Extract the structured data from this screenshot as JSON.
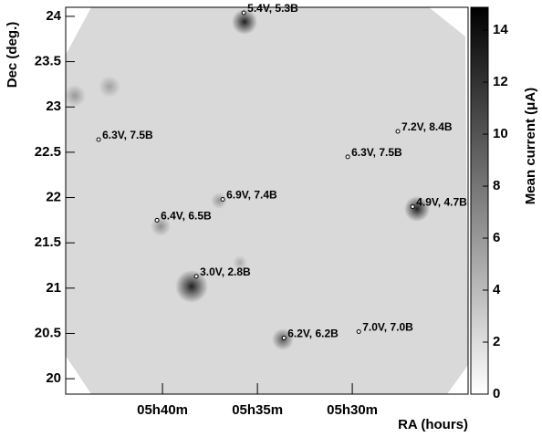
{
  "chart_data": {
    "type": "heatmap",
    "y_label": "Dec (deg.)",
    "x_label": "RA (hours)",
    "colorbar_label": "Mean current (μA)",
    "xlim": [
      5.7517,
      5.3983
    ],
    "ylim": [
      19.83,
      24.1
    ],
    "xticks": [
      {
        "value": 5.6667,
        "label": "05h40m"
      },
      {
        "value": 5.5833,
        "label": "05h35m"
      },
      {
        "value": 5.5,
        "label": "05h30m"
      }
    ],
    "yticks": [
      20,
      20.5,
      21,
      21.5,
      22,
      22.5,
      23,
      23.5,
      24
    ],
    "clim": [
      0,
      14.88
    ],
    "cticks": [
      0,
      2,
      4,
      6,
      8,
      10,
      12,
      14
    ],
    "annotations": [
      {
        "text": "5.4V, 5.3B",
        "ra": 5.5953,
        "dec": 24.04
      },
      {
        "text": "6.3V, 7.5B",
        "ra": 5.7228,
        "dec": 22.64
      },
      {
        "text": "7.2V, 8.4B",
        "ra": 5.46,
        "dec": 22.73
      },
      {
        "text": "6.3V, 7.5B",
        "ra": 5.504,
        "dec": 22.45
      },
      {
        "text": "6.9V, 7.4B",
        "ra": 5.6138,
        "dec": 21.98
      },
      {
        "text": "4.9V, 4.7B",
        "ra": 5.447,
        "dec": 21.9
      },
      {
        "text": "6.4V, 6.5B",
        "ra": 5.6715,
        "dec": 21.75
      },
      {
        "text": "3.0V, 2.8B",
        "ra": 5.637,
        "dec": 21.13
      },
      {
        "text": "6.2V, 6.2B",
        "ra": 5.56,
        "dec": 20.45
      },
      {
        "text": "7.0V, 7.0B",
        "ra": 5.4943,
        "dec": 20.52
      }
    ]
  }
}
